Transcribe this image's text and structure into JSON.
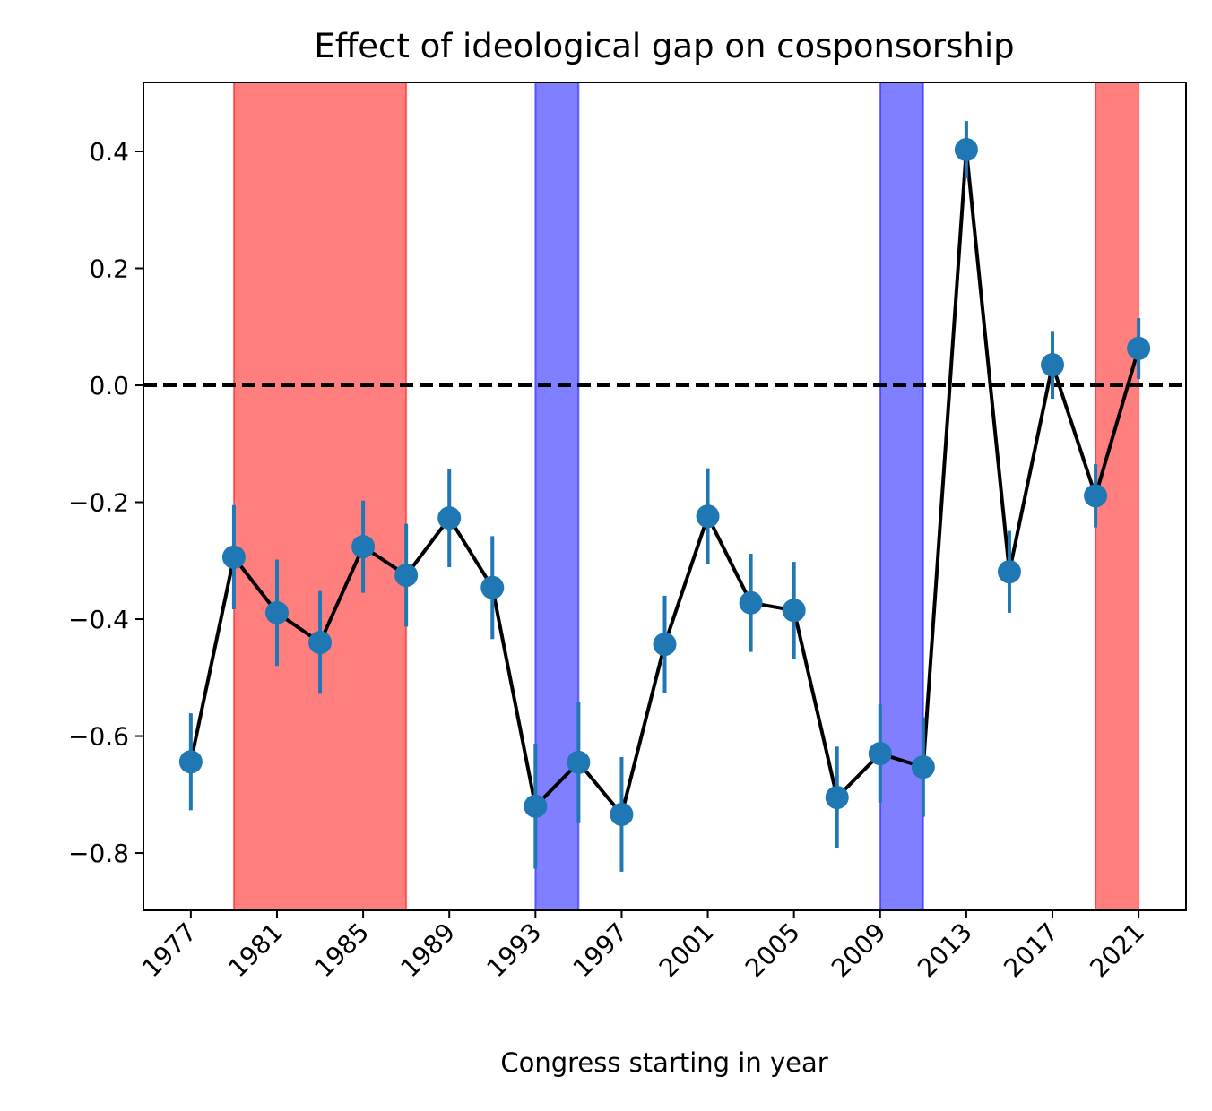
{
  "chart_data": {
    "type": "errorbar",
    "title": "Effect of ideological gap on cosponsorship",
    "x_label": "Congress starting in year",
    "x": [
      1977,
      1979,
      1981,
      1983,
      1985,
      1987,
      1989,
      1991,
      1993,
      1995,
      1997,
      1999,
      2001,
      2003,
      2005,
      2007,
      2009,
      2011,
      2013,
      2015,
      2017,
      2019,
      2021
    ],
    "values": [
      -0.644,
      -0.294,
      -0.389,
      -0.44,
      -0.276,
      -0.325,
      -0.227,
      -0.346,
      -0.72,
      -0.645,
      -0.734,
      -0.443,
      -0.224,
      -0.372,
      -0.385,
      -0.705,
      -0.63,
      -0.653,
      0.403,
      -0.319,
      0.035,
      -0.189,
      0.063
    ],
    "errors": [
      0.083,
      0.089,
      0.091,
      0.088,
      0.079,
      0.088,
      0.084,
      0.088,
      0.107,
      0.104,
      0.098,
      0.083,
      0.082,
      0.084,
      0.083,
      0.087,
      0.084,
      0.085,
      0.049,
      0.07,
      0.058,
      0.054,
      0.052
    ],
    "color": "#1f77b4",
    "line_color": "#000000",
    "spans": [
      {
        "start": 1979,
        "end": 1987,
        "color": "#ff0000"
      },
      {
        "start": 1993,
        "end": 1995,
        "color": "#0000ff"
      },
      {
        "start": 2009,
        "end": 2011,
        "color": "#0000ff"
      },
      {
        "start": 2019,
        "end": 2021,
        "color": "#ff0000"
      }
    ],
    "span_alpha": 0.5,
    "hline": 0,
    "xlim": [
      1974.8,
      2023.2
    ],
    "ylim": [
      -0.898,
      0.518
    ],
    "xticks": [
      1977,
      1981,
      1985,
      1989,
      1993,
      1997,
      2001,
      2005,
      2009,
      2013,
      2017,
      2021
    ],
    "yticks": [
      {
        "value": -0.8,
        "label": "−0.8"
      },
      {
        "value": -0.6,
        "label": "−0.6"
      },
      {
        "value": -0.4,
        "label": "−0.4"
      },
      {
        "value": -0.2,
        "label": "−0.2"
      },
      {
        "value": 0,
        "label": "0.0"
      },
      0.2,
      0.4
    ]
  }
}
